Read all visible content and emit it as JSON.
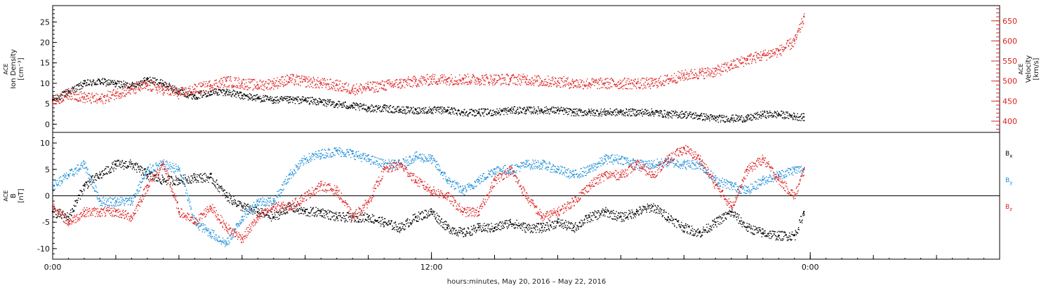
{
  "xaxis": {
    "title": "hours:minutes, May 20, 2016 – May 22, 2016",
    "ticks": [
      {
        "hour": 0,
        "label": "0:00"
      },
      {
        "hour": 12,
        "label": "12:00"
      },
      {
        "hour": 24,
        "label": "0:00"
      }
    ],
    "minor_tick_every_hours": 2,
    "range_hours": [
      0,
      30
    ]
  },
  "chart_data": [
    {
      "type": "scatter",
      "panel": "plasma",
      "ylabel_left": [
        "ACE",
        "Ion Density",
        "[cm⁻³]"
      ],
      "ylabel_right": [
        "ACE",
        "Velocity",
        "[km/s]"
      ],
      "yticks_left": [
        0,
        5,
        10,
        15,
        20,
        25
      ],
      "yticks_right": [
        400,
        450,
        500,
        550,
        600,
        650
      ],
      "ylim_left": [
        -2,
        29
      ],
      "ylim_right": [
        372,
        688
      ],
      "series": [
        {
          "axis": "left",
          "color": "#000000",
          "hours": [
            0,
            0.5,
            1,
            1.5,
            2,
            2.5,
            3,
            3.5,
            4,
            4.5,
            5,
            5.5,
            6,
            6.5,
            7,
            7.5,
            8,
            8.5,
            9,
            9.5,
            10,
            10.5,
            11,
            11.5,
            12,
            12.5,
            13,
            13.5,
            14,
            14.5,
            15,
            15.5,
            16,
            16.5,
            17,
            17.5,
            18,
            18.5,
            19,
            19.5,
            20,
            20.5,
            21,
            21.5,
            22,
            22.5,
            23,
            23.5,
            23.8
          ],
          "values": [
            6,
            8,
            10,
            10.5,
            10,
            9.5,
            11,
            10,
            8,
            7,
            8,
            8,
            7,
            6.5,
            6,
            6,
            6,
            5.5,
            5,
            4.5,
            4,
            4,
            3.5,
            3.5,
            3.5,
            3.5,
            3,
            3,
            3,
            3.5,
            3.5,
            3.5,
            3.5,
            3,
            3,
            3,
            3,
            3,
            3,
            2.5,
            2.5,
            2,
            1.5,
            1.5,
            1.5,
            2.5,
            2.5,
            2,
            1.8
          ]
        },
        {
          "axis": "right",
          "color": "#e02020",
          "hours": [
            0,
            0.5,
            1,
            1.5,
            2,
            2.5,
            3,
            3.5,
            4,
            4.5,
            5,
            5.5,
            6,
            6.5,
            7,
            7.5,
            8,
            8.5,
            9,
            9.5,
            10,
            10.5,
            11,
            11.5,
            12,
            12.5,
            13,
            13.5,
            14,
            14.5,
            15,
            15.5,
            16,
            16.5,
            17,
            17.5,
            18,
            18.5,
            19,
            19.5,
            20,
            20.5,
            21,
            21.5,
            22,
            22.5,
            23,
            23.5,
            23.8
          ],
          "values": [
            450,
            470,
            460,
            455,
            470,
            480,
            490,
            480,
            470,
            480,
            490,
            500,
            495,
            490,
            495,
            505,
            500,
            495,
            490,
            480,
            485,
            490,
            495,
            500,
            505,
            505,
            505,
            505,
            505,
            505,
            505,
            500,
            500,
            495,
            495,
            495,
            495,
            495,
            495,
            505,
            515,
            520,
            525,
            540,
            555,
            565,
            575,
            600,
            660
          ]
        }
      ]
    },
    {
      "type": "scatter",
      "panel": "magnetic_field",
      "ylabel_left": [
        "ACE",
        "B",
        "[nT]"
      ],
      "yticks_left": [
        -10,
        -5,
        0,
        5,
        10
      ],
      "ylim_left": [
        -12,
        12
      ],
      "zero_line": true,
      "series": [
        {
          "name": "Bx",
          "label_main": "B",
          "label_sub": "x",
          "color": "#000000",
          "hours": [
            0,
            0.5,
            1,
            1.5,
            2,
            2.5,
            3,
            3.5,
            4,
            4.5,
            5,
            5.5,
            6,
            6.5,
            7,
            7.5,
            8,
            8.5,
            9,
            9.5,
            10,
            10.5,
            11,
            11.5,
            12,
            12.5,
            13,
            13.5,
            14,
            14.5,
            15,
            15.5,
            16,
            16.5,
            17,
            17.5,
            18,
            18.5,
            19,
            19.5,
            20,
            20.5,
            21,
            21.5,
            22,
            22.5,
            23,
            23.5,
            23.8
          ],
          "values": [
            -3,
            -4,
            2,
            4,
            6,
            6,
            4,
            3,
            3,
            3.5,
            3.5,
            0,
            -2,
            -3,
            -4,
            -2,
            -3,
            -3,
            -4,
            -4,
            -4,
            -5,
            -6,
            -4,
            -3,
            -6,
            -7,
            -6,
            -6,
            -5,
            -6,
            -6,
            -5,
            -6,
            -4,
            -3,
            -4,
            -3,
            -2,
            -4,
            -6,
            -7,
            -5,
            -3,
            -6,
            -7,
            -7.5,
            -7.5,
            -3
          ]
        },
        {
          "name": "By",
          "label_main": "B",
          "label_sub": "y",
          "color": "#1e8fd8",
          "hours": [
            0,
            0.5,
            1,
            1.5,
            2,
            2.5,
            3,
            3.5,
            4,
            4.5,
            5,
            5.5,
            6,
            6.5,
            7,
            7.5,
            8,
            8.5,
            9,
            9.5,
            10,
            10.5,
            11,
            11.5,
            12,
            12.5,
            13,
            13.5,
            14,
            14.5,
            15,
            15.5,
            16,
            16.5,
            17,
            17.5,
            18,
            18.5,
            19,
            19.5,
            20,
            20.5,
            21,
            21.5,
            22,
            22.5,
            23,
            23.5,
            23.8
          ],
          "values": [
            2,
            4,
            6,
            -1,
            -1,
            -1,
            5,
            6,
            5,
            -5,
            -7,
            -9,
            -4,
            -1,
            -1,
            4,
            7,
            8,
            8.5,
            8,
            7,
            6,
            6,
            7.5,
            7,
            3,
            1,
            3,
            5,
            5,
            6,
            6,
            5,
            4,
            5,
            7,
            7,
            6,
            6,
            6.5,
            6,
            6,
            3,
            2,
            1,
            3,
            4,
            5,
            5
          ]
        },
        {
          "name": "Bz",
          "label_main": "B",
          "label_sub": "z",
          "color": "#e02020",
          "hours": [
            0,
            0.5,
            1,
            1.5,
            2,
            2.5,
            3,
            3.5,
            4,
            4.5,
            5,
            5.5,
            6,
            6.5,
            7,
            7.5,
            8,
            8.5,
            9,
            9.5,
            10,
            10.5,
            11,
            11.5,
            12,
            12.5,
            13,
            13.5,
            14,
            14.5,
            15,
            15.5,
            16,
            16.5,
            17,
            17.5,
            18,
            18.5,
            19,
            19.5,
            20,
            20.5,
            21,
            21.5,
            22,
            22.5,
            23,
            23.5,
            23.8
          ],
          "values": [
            -2,
            -5,
            -3,
            -3,
            -3,
            -4,
            2,
            6,
            -3,
            -5,
            -2,
            -6,
            -8,
            -4,
            -2,
            -2,
            0,
            2,
            1,
            -4,
            -1,
            5,
            6,
            3,
            1,
            0,
            -3,
            -3,
            3,
            5,
            0,
            -4,
            -3,
            -1,
            2,
            4,
            4,
            6,
            4,
            7,
            9,
            7,
            2,
            -2,
            5,
            7,
            3,
            0,
            5
          ]
        }
      ]
    }
  ]
}
